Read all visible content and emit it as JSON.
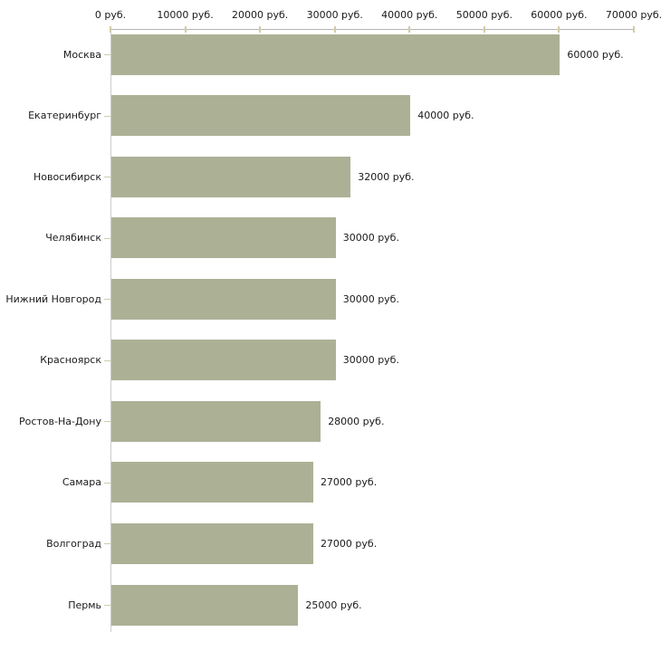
{
  "chart_data": {
    "type": "bar",
    "orientation": "horizontal",
    "title": "",
    "xlabel": "",
    "ylabel": "",
    "categories": [
      "Москва",
      "Екатеринбург",
      "Новосибирск",
      "Челябинск",
      "Нижний Новгород",
      "Красноярск",
      "Ростов-На-Дону",
      "Самара",
      "Волгоград",
      "Пермь"
    ],
    "values": [
      60000,
      40000,
      32000,
      30000,
      30000,
      30000,
      28000,
      27000,
      27000,
      25000
    ],
    "value_labels": [
      "60000 руб.",
      "40000 руб.",
      "32000 руб.",
      "30000 руб.",
      "30000 руб.",
      "30000 руб.",
      "28000 руб.",
      "27000 руб.",
      "27000 руб.",
      "25000 руб."
    ],
    "xlim": [
      0,
      70000
    ],
    "x_ticks": [
      0,
      10000,
      20000,
      30000,
      40000,
      50000,
      60000,
      70000
    ],
    "x_tick_labels": [
      "0 руб.",
      "10000 руб.",
      "20000 руб.",
      "30000 руб.",
      "40000 руб.",
      "50000 руб.",
      "60000 руб.",
      "70000 руб."
    ],
    "grid": false,
    "legend": false,
    "axis_position": "top",
    "colors": {
      "bar": "#acb196",
      "x_axis_line": "#b5b5b5",
      "y_axis_line": "#cccccc",
      "tick": "#d2cca6",
      "text": "#1a1a1a",
      "background": "#ffffff"
    }
  }
}
